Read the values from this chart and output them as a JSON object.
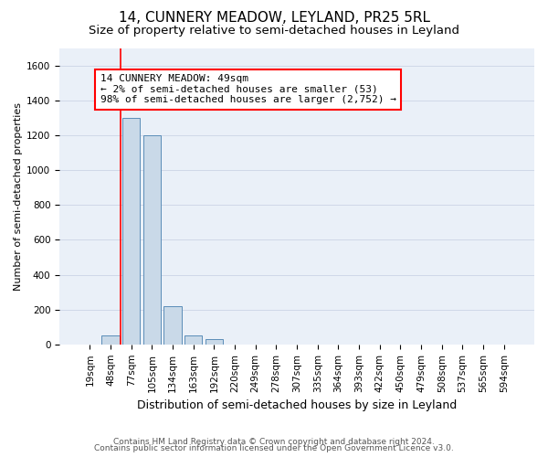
{
  "title": "14, CUNNERY MEADOW, LEYLAND, PR25 5RL",
  "subtitle": "Size of property relative to semi-detached houses in Leyland",
  "xlabel": "Distribution of semi-detached houses by size in Leyland",
  "ylabel": "Number of semi-detached properties",
  "footnote1": "Contains HM Land Registry data © Crown copyright and database right 2024.",
  "footnote2": "Contains public sector information licensed under the Open Government Licence v3.0.",
  "annotation_title": "14 CUNNERY MEADOW: 49sqm",
  "annotation_line1": "← 2% of semi-detached houses are smaller (53)",
  "annotation_line2": "98% of semi-detached houses are larger (2,752) →",
  "bar_labels": [
    "19sqm",
    "48sqm",
    "77sqm",
    "105sqm",
    "134sqm",
    "163sqm",
    "192sqm",
    "220sqm",
    "249sqm",
    "278sqm",
    "307sqm",
    "335sqm",
    "364sqm",
    "393sqm",
    "422sqm",
    "450sqm",
    "479sqm",
    "508sqm",
    "537sqm",
    "565sqm",
    "594sqm"
  ],
  "bar_values": [
    0,
    53,
    1300,
    1200,
    220,
    50,
    30,
    0,
    0,
    0,
    0,
    0,
    0,
    0,
    0,
    0,
    0,
    0,
    0,
    0,
    0
  ],
  "bar_color": "#c9d9e8",
  "bar_edgecolor": "#5b8db8",
  "property_line_x": 1.5,
  "ylim": [
    0,
    1700
  ],
  "yticks": [
    0,
    200,
    400,
    600,
    800,
    1000,
    1200,
    1400,
    1600
  ],
  "grid_color": "#d0d8e8",
  "background_color": "#eaf0f8",
  "title_fontsize": 11,
  "subtitle_fontsize": 9.5,
  "annotation_fontsize": 8,
  "tick_fontsize": 7.5,
  "ylabel_fontsize": 8,
  "xlabel_fontsize": 9,
  "footnote_fontsize": 6.5
}
